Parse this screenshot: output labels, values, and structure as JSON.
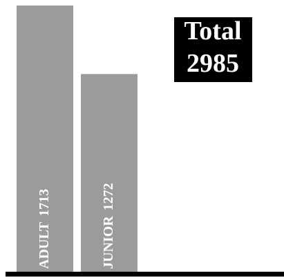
{
  "chart_data": {
    "type": "bar",
    "categories": [
      "ADULT",
      "JUNIOR"
    ],
    "values": [
      1713,
      1272
    ],
    "color": "#9b9b9b",
    "total": {
      "label": "Total",
      "value": 2985
    }
  }
}
